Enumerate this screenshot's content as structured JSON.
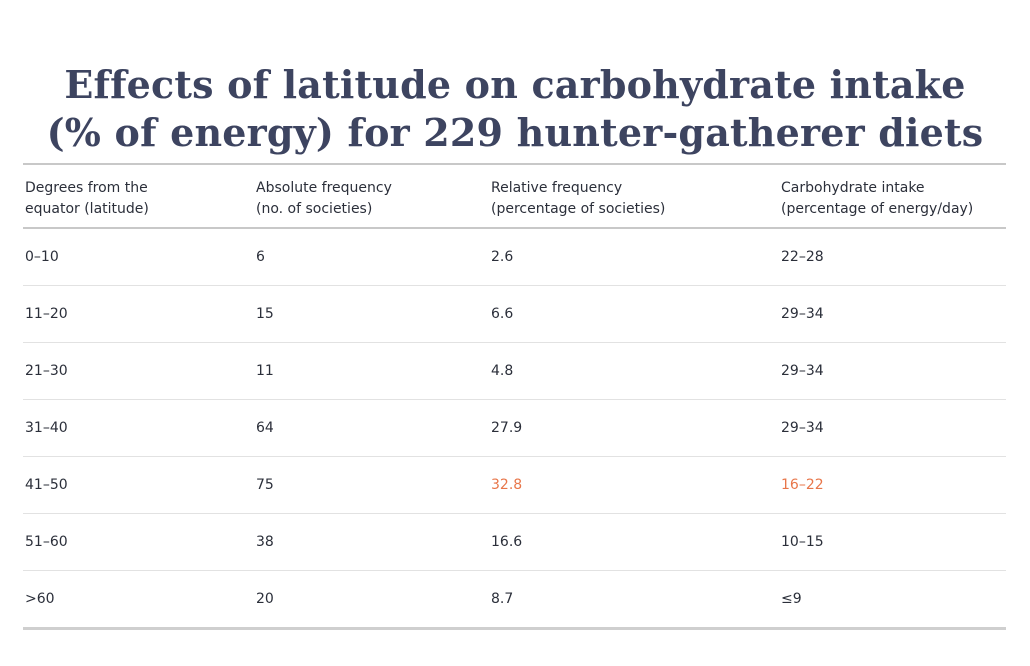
{
  "title": {
    "line1": "Effects of latitude on carbohydrate intake",
    "line2": "(% of energy) for 229 hunter-gatherer diets"
  },
  "columns": [
    {
      "line1": "Degrees from the",
      "line2": "equator (latitude)"
    },
    {
      "line1": "Absolute frequency",
      "line2": "(no. of societies)"
    },
    {
      "line1": "Relative frequency",
      "line2": "(percentage of societies)"
    },
    {
      "line1": "Carbohydrate intake",
      "line2": "(percentage of energy/day)"
    }
  ],
  "rows": [
    {
      "latitude": "0–10",
      "absolute": "6",
      "relative": "2.6",
      "carb": "22–28"
    },
    {
      "latitude": "11–20",
      "absolute": "15",
      "relative": "6.6",
      "carb": "29–34"
    },
    {
      "latitude": "21–30",
      "absolute": "11",
      "relative": "4.8",
      "carb": "29–34"
    },
    {
      "latitude": "31–40",
      "absolute": "64",
      "relative": "27.9",
      "carb": "29–34"
    },
    {
      "latitude": "41–50",
      "absolute": "75",
      "relative": "32.8",
      "carb": "16–22"
    },
    {
      "latitude": "51–60",
      "absolute": "38",
      "relative": "16.6",
      "carb": "10–15"
    },
    {
      "latitude": ">60",
      "absolute": "20",
      "relative": "8.7",
      "carb": "≤9"
    }
  ],
  "colors": {
    "title": "#3d4460",
    "text": "#2b2f3a",
    "highlight": "#e8764a",
    "rule": "#c8c8c8"
  }
}
